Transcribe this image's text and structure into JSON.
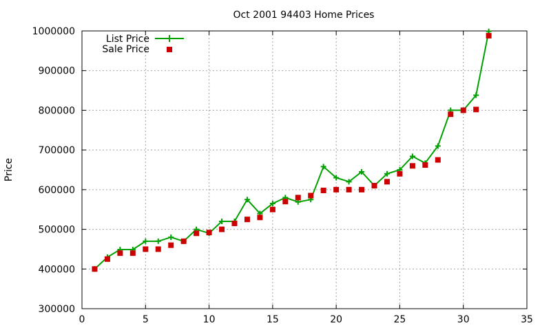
{
  "chart_data": {
    "type": "line",
    "title": "Oct 2001 94403 Home Prices",
    "xlabel": "",
    "ylabel": "Price",
    "xlim": [
      0,
      35
    ],
    "ylim": [
      300000,
      1000000
    ],
    "xticks": [
      "0",
      "5",
      "10",
      "15",
      "20",
      "25",
      "30",
      "35"
    ],
    "yticks": [
      "300000",
      "400000",
      "500000",
      "600000",
      "700000",
      "800000",
      "900000",
      "1000000"
    ],
    "grid": true,
    "legend_position": "top-left",
    "series": [
      {
        "name": "List Price",
        "style": "line-with-plus-markers",
        "color": "#00a000",
        "x": [
          1,
          2,
          3,
          4,
          5,
          6,
          7,
          8,
          9,
          10,
          11,
          12,
          13,
          14,
          15,
          16,
          17,
          18,
          19,
          20,
          21,
          22,
          23,
          24,
          25,
          26,
          27,
          28,
          29,
          30,
          31,
          32
        ],
        "y": [
          400000,
          430000,
          449000,
          449000,
          470000,
          470000,
          480000,
          470000,
          500000,
          490000,
          520000,
          520000,
          575000,
          540000,
          565000,
          580000,
          569000,
          575000,
          658000,
          630000,
          620000,
          645000,
          610000,
          640000,
          650000,
          684000,
          667000,
          710000,
          800000,
          800000,
          838000,
          999000
        ]
      },
      {
        "name": "Sale Price",
        "style": "square-markers",
        "color": "#cc0000",
        "x": [
          1,
          2,
          3,
          4,
          5,
          6,
          7,
          8,
          9,
          10,
          11,
          12,
          13,
          14,
          15,
          16,
          17,
          18,
          19,
          20,
          21,
          22,
          23,
          24,
          25,
          26,
          27,
          28,
          29,
          30,
          31,
          32
        ],
        "y": [
          400000,
          425000,
          440000,
          440000,
          450000,
          450000,
          460000,
          470000,
          490000,
          492000,
          500000,
          515000,
          525000,
          530000,
          550000,
          570000,
          580000,
          585000,
          598000,
          600000,
          600000,
          600000,
          610000,
          620000,
          640000,
          660000,
          662000,
          675000,
          790000,
          800000,
          802000,
          988000
        ]
      }
    ]
  }
}
